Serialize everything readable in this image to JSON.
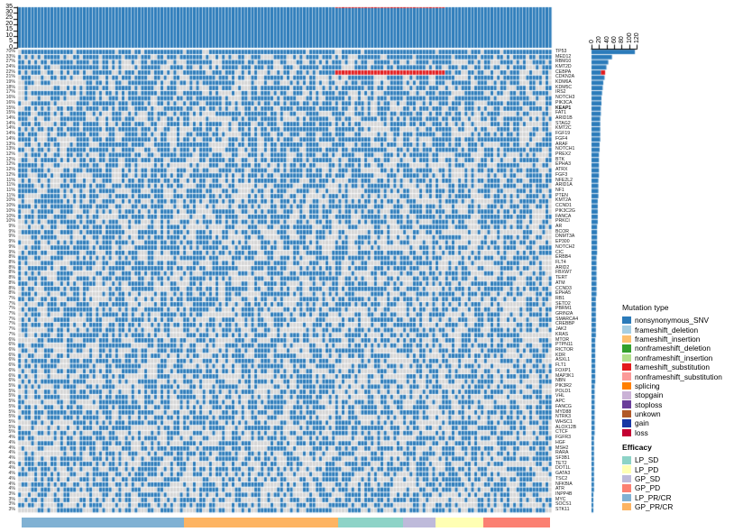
{
  "chart_data": {
    "type": "heatmap",
    "subtype": "oncoplot",
    "samples": 165,
    "grid_background_color": "#d5d5d5",
    "top_axis": {
      "ticks": [
        0,
        5,
        10,
        15,
        20,
        25,
        30,
        35
      ],
      "max": 35
    },
    "right_axis": {
      "ticks": [
        0,
        20,
        40,
        60,
        80,
        100,
        120
      ],
      "max": 120
    },
    "legend": {
      "mutation_title": "Mutation type",
      "efficacy_title": "Efficacy"
    },
    "highlighted_gene": "KEAP1",
    "highlight_run": {
      "gene": "CEBPA",
      "type_index": 5,
      "col_start": 98,
      "col_end": 131
    },
    "mutation_types": [
      {
        "label": "nonsynonymous_SNV",
        "color": "#2b7bba"
      },
      {
        "label": "frameshift_deletion",
        "color": "#a6cee3"
      },
      {
        "label": "frameshift_insertion",
        "color": "#fdbf6f"
      },
      {
        "label": "nonframeshift_deletion",
        "color": "#33a02c"
      },
      {
        "label": "nonframeshift_insertion",
        "color": "#b2df8a"
      },
      {
        "label": "frameshift_substitution",
        "color": "#e31a1c"
      },
      {
        "label": "nonframeshift_substitution",
        "color": "#fb9a99"
      },
      {
        "label": "splicing",
        "color": "#ff7f00"
      },
      {
        "label": "stopgain",
        "color": "#cab2d6"
      },
      {
        "label": "stoploss",
        "color": "#6a3d9a"
      },
      {
        "label": "unkown",
        "color": "#b15928"
      },
      {
        "label": "gain",
        "color": "#1636a4"
      },
      {
        "label": "loss",
        "color": "#c30032"
      }
    ],
    "efficacy": [
      {
        "label": "LP_SD",
        "color": "#8dd3c7"
      },
      {
        "label": "LP_PD",
        "color": "#ffffb3"
      },
      {
        "label": "GP_SD",
        "color": "#bebada"
      },
      {
        "label": "GP_PD",
        "color": "#fb8072"
      },
      {
        "label": "LP_PR/CR",
        "color": "#80b1d3"
      },
      {
        "label": "GP_PR/CR",
        "color": "#fdb462"
      }
    ],
    "bottom_bar_segments": [
      {
        "efficacy": "LP_PR/CR",
        "fraction": 0.308
      },
      {
        "efficacy": "GP_PR/CR",
        "fraction": 0.291
      },
      {
        "efficacy": "LP_SD",
        "fraction": 0.123
      },
      {
        "efficacy": "GP_SD",
        "fraction": 0.062
      },
      {
        "efficacy": "LP_PD",
        "fraction": 0.089
      },
      {
        "efficacy": "GP_PD",
        "fraction": 0.127
      }
    ],
    "genes": [
      {
        "name": "TP53",
        "pct": "70%"
      },
      {
        "name": "MED12",
        "pct": "33%"
      },
      {
        "name": "RBM10",
        "pct": "27%"
      },
      {
        "name": "KMT2D",
        "pct": "24%"
      },
      {
        "name": "CEBPA",
        "pct": "22%"
      },
      {
        "name": "CDKN2A",
        "pct": "21%"
      },
      {
        "name": "KDM6A",
        "pct": "19%"
      },
      {
        "name": "KDM5C",
        "pct": "18%"
      },
      {
        "name": "IRS2",
        "pct": "17%"
      },
      {
        "name": "NOTCH3",
        "pct": "16%"
      },
      {
        "name": "PIK3CA",
        "pct": "16%"
      },
      {
        "name": "KEAP1",
        "pct": "15%"
      },
      {
        "name": "FAT1",
        "pct": "15%"
      },
      {
        "name": "ARID1B",
        "pct": "14%"
      },
      {
        "name": "STAG2",
        "pct": "14%"
      },
      {
        "name": "KMT2C",
        "pct": "14%"
      },
      {
        "name": "FGF19",
        "pct": "14%"
      },
      {
        "name": "FGF4",
        "pct": "14%"
      },
      {
        "name": "ARAF",
        "pct": "13%"
      },
      {
        "name": "NOTCH1",
        "pct": "13%"
      },
      {
        "name": "PREX2",
        "pct": "12%"
      },
      {
        "name": "BTK",
        "pct": "12%"
      },
      {
        "name": "EPHA3",
        "pct": "12%"
      },
      {
        "name": "ATRX",
        "pct": "12%"
      },
      {
        "name": "FGF3",
        "pct": "12%"
      },
      {
        "name": "NFE2L2",
        "pct": "11%"
      },
      {
        "name": "ARID1A",
        "pct": "11%"
      },
      {
        "name": "NF1",
        "pct": "11%"
      },
      {
        "name": "PTEN",
        "pct": "11%"
      },
      {
        "name": "KMT2A",
        "pct": "10%"
      },
      {
        "name": "CCND1",
        "pct": "10%"
      },
      {
        "name": "PIK3C2G",
        "pct": "10%"
      },
      {
        "name": "FANCA",
        "pct": "10%"
      },
      {
        "name": "PRKCI",
        "pct": "10%"
      },
      {
        "name": "AR",
        "pct": "9%"
      },
      {
        "name": "BCOR",
        "pct": "9%"
      },
      {
        "name": "DNMT3A",
        "pct": "9%"
      },
      {
        "name": "EP300",
        "pct": "9%"
      },
      {
        "name": "NOTCH2",
        "pct": "9%"
      },
      {
        "name": "CIC",
        "pct": "9%"
      },
      {
        "name": "ERBB4",
        "pct": "8%"
      },
      {
        "name": "FLT4",
        "pct": "8%"
      },
      {
        "name": "ARID2",
        "pct": "8%"
      },
      {
        "name": "FBXW7",
        "pct": "8%"
      },
      {
        "name": "TERT",
        "pct": "8%"
      },
      {
        "name": "ATM",
        "pct": "8%"
      },
      {
        "name": "CCND3",
        "pct": "8%"
      },
      {
        "name": "EPHA5",
        "pct": "8%"
      },
      {
        "name": "RB1",
        "pct": "7%"
      },
      {
        "name": "SETD2",
        "pct": "7%"
      },
      {
        "name": "PBRM1",
        "pct": "7%"
      },
      {
        "name": "GRIN2A",
        "pct": "7%"
      },
      {
        "name": "SMARCA4",
        "pct": "7%"
      },
      {
        "name": "CREBBP",
        "pct": "7%"
      },
      {
        "name": "JAK2",
        "pct": "7%"
      },
      {
        "name": "KRAS",
        "pct": "7%"
      },
      {
        "name": "MTOR",
        "pct": "6%"
      },
      {
        "name": "PTPN11",
        "pct": "6%"
      },
      {
        "name": "RICTOR",
        "pct": "6%"
      },
      {
        "name": "KDR",
        "pct": "6%"
      },
      {
        "name": "ASXL1",
        "pct": "6%"
      },
      {
        "name": "FLT1",
        "pct": "6%"
      },
      {
        "name": "FOXP1",
        "pct": "6%"
      },
      {
        "name": "MAP3K1",
        "pct": "6%"
      },
      {
        "name": "NBN",
        "pct": "6%"
      },
      {
        "name": "PIK3R2",
        "pct": "5%"
      },
      {
        "name": "POLD1",
        "pct": "5%"
      },
      {
        "name": "VHL",
        "pct": "5%"
      },
      {
        "name": "APC",
        "pct": "5%"
      },
      {
        "name": "FANCG",
        "pct": "5%"
      },
      {
        "name": "MYD88",
        "pct": "5%"
      },
      {
        "name": "NTRK3",
        "pct": "5%"
      },
      {
        "name": "WHSC1",
        "pct": "5%"
      },
      {
        "name": "ALOX12B",
        "pct": "5%"
      },
      {
        "name": "CTCF",
        "pct": "5%"
      },
      {
        "name": "FGFR3",
        "pct": "4%"
      },
      {
        "name": "HGF",
        "pct": "4%"
      },
      {
        "name": "MSH2",
        "pct": "4%"
      },
      {
        "name": "RARA",
        "pct": "4%"
      },
      {
        "name": "SF3B1",
        "pct": "4%"
      },
      {
        "name": "TET2",
        "pct": "4%"
      },
      {
        "name": "DOT1L",
        "pct": "4%"
      },
      {
        "name": "GATA3",
        "pct": "4%"
      },
      {
        "name": "TSC2",
        "pct": "4%"
      },
      {
        "name": "NFKBIA",
        "pct": "4%"
      },
      {
        "name": "ATR",
        "pct": "4%"
      },
      {
        "name": "INPP4B",
        "pct": "3%"
      },
      {
        "name": "MYC",
        "pct": "3%"
      },
      {
        "name": "SOCS1",
        "pct": "3%"
      },
      {
        "name": "STK11",
        "pct": "3%"
      }
    ]
  }
}
